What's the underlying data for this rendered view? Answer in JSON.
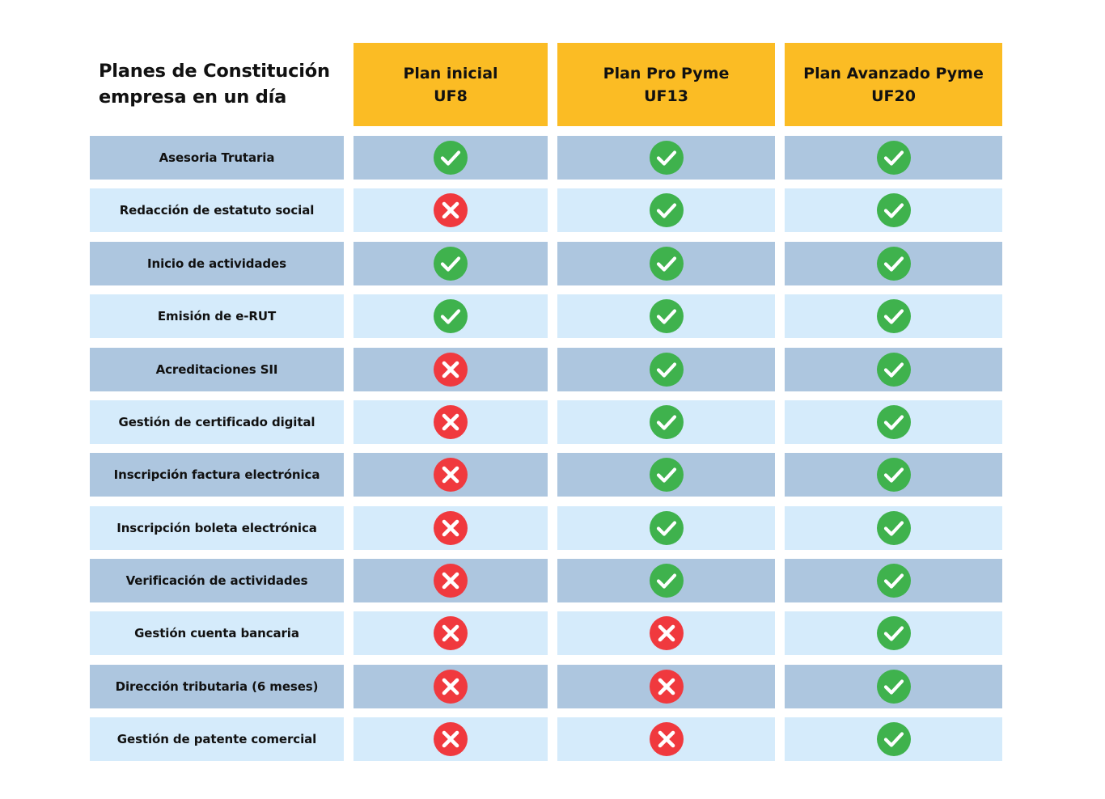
{
  "title": {
    "line1": "Planes de Constitución",
    "line2": "empresa en un día"
  },
  "plans": [
    {
      "name": "Plan inicial",
      "price": "UF8"
    },
    {
      "name": "Plan Pro Pyme",
      "price": "UF13"
    },
    {
      "name": "Plan Avanzado Pyme",
      "price": "UF20"
    }
  ],
  "features": [
    {
      "label": "Asesoria Trutaria",
      "included": [
        true,
        true,
        true
      ]
    },
    {
      "label": "Redacción de estatuto social",
      "included": [
        false,
        true,
        true
      ]
    },
    {
      "label": "Inicio de actividades",
      "included": [
        true,
        true,
        true
      ]
    },
    {
      "label": "Emisión de e-RUT",
      "included": [
        true,
        true,
        true
      ]
    },
    {
      "label": "Acreditaciones SII",
      "included": [
        false,
        true,
        true
      ]
    },
    {
      "label": "Gestión de certificado digital",
      "included": [
        false,
        true,
        true
      ]
    },
    {
      "label": "Inscripción factura electrónica",
      "included": [
        false,
        true,
        true
      ]
    },
    {
      "label": "Inscripción boleta electrónica",
      "included": [
        false,
        true,
        true
      ]
    },
    {
      "label": "Verificación de actividades",
      "included": [
        false,
        true,
        true
      ]
    },
    {
      "label": "Gestión cuenta bancaria",
      "included": [
        false,
        false,
        true
      ]
    },
    {
      "label": "Dirección tributaria (6 meses)",
      "included": [
        false,
        false,
        true
      ]
    },
    {
      "label": "Gestión de patente comercial",
      "included": [
        false,
        false,
        true
      ]
    }
  ],
  "icons": {
    "included": "check-circle-icon",
    "excluded": "x-circle-icon"
  },
  "colors": {
    "header_bg": "#fbbc24",
    "row_dark": "#adc6df",
    "row_light": "#d5ebfb",
    "check_green": "#3fb24d",
    "cross_red": "#f0393e"
  }
}
